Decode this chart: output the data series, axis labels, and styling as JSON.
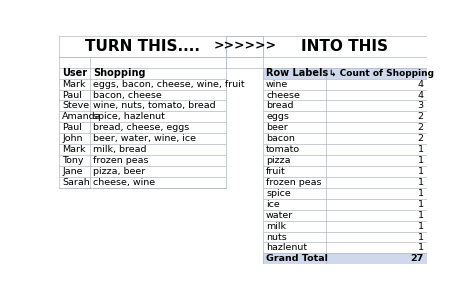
{
  "title_left": "TURN THIS....",
  "title_arrow": ">>>>>>",
  "title_right": "INTO THIS",
  "left_headers": [
    "User",
    "Shopping"
  ],
  "left_data": [
    [
      "Mark",
      "eggs, bacon, cheese, wine, fruit"
    ],
    [
      "Paul",
      "bacon, cheese"
    ],
    [
      "Steve",
      "wine, nuts, tomato, bread"
    ],
    [
      "Amanda",
      "spice, hazlenut"
    ],
    [
      "Paul",
      "bread, cheese, eggs"
    ],
    [
      "John",
      "beer, water, wine, ice"
    ],
    [
      "Mark",
      "milk, bread"
    ],
    [
      "Tony",
      "frozen peas"
    ],
    [
      "Jane",
      "pizza, beer"
    ],
    [
      "Sarah",
      "cheese, wine"
    ]
  ],
  "right_headers": [
    "Row Labels",
    "Count of Shopping"
  ],
  "right_data": [
    [
      "wine",
      "4"
    ],
    [
      "cheese",
      "4"
    ],
    [
      "bread",
      "3"
    ],
    [
      "eggs",
      "2"
    ],
    [
      "beer",
      "2"
    ],
    [
      "bacon",
      "2"
    ],
    [
      "tomato",
      "1"
    ],
    [
      "pizza",
      "1"
    ],
    [
      "fruit",
      "1"
    ],
    [
      "frozen peas",
      "1"
    ],
    [
      "spice",
      "1"
    ],
    [
      "ice",
      "1"
    ],
    [
      "water",
      "1"
    ],
    [
      "milk",
      "1"
    ],
    [
      "nuts",
      "1"
    ],
    [
      "hazlenut",
      "1"
    ]
  ],
  "grand_total_label": "Grand Total",
  "grand_total_value": "27",
  "bg_color": "#ffffff",
  "header_bg_right": "#d0d8ec",
  "grand_total_bg": "#d0d8ec",
  "grid_color": "#b0b8c8",
  "title_fontsize": 11,
  "header_fontsize": 7,
  "data_fontsize": 6.8,
  "arrow_fontsize": 9,
  "fig_width": 4.74,
  "fig_height": 2.97,
  "dpi": 100
}
